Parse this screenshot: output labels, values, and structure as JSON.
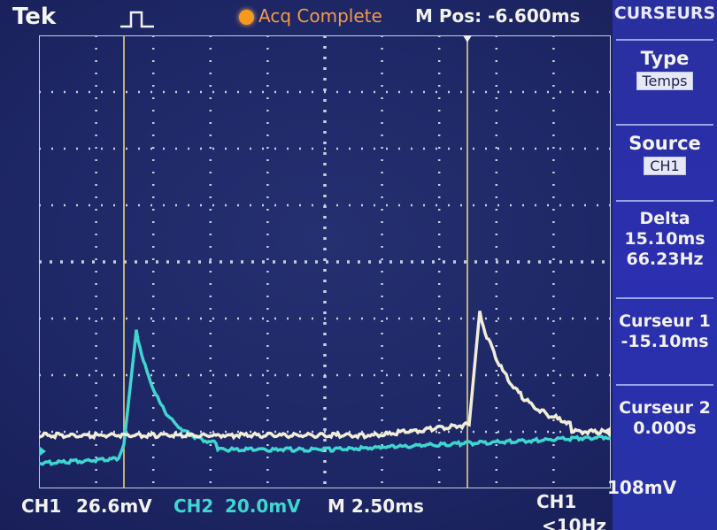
{
  "header": {
    "brand": "Tek",
    "status": "Acq Complete",
    "position": "M Pos: -6.600ms"
  },
  "menu": {
    "title": "CURSEURS",
    "type_label": "Type",
    "type_value": "Temps",
    "source_label": "Source",
    "source_value": "CH1",
    "delta_label": "Delta",
    "delta_time": "15.10ms",
    "delta_freq": "66.23Hz",
    "cursor1_label": "Curseur 1",
    "cursor1_value": "-15.10ms",
    "cursor2_label": "Curseur 2",
    "cursor2_value": "0.000s"
  },
  "footer": {
    "ch1_label": "CH1",
    "ch1_scale": "26.6mV",
    "ch2_label": "CH2",
    "ch2_scale": "20.0mV",
    "timebase": "M 2.50ms",
    "trigger_source": "CH1",
    "trigger_level": "108mV",
    "frequency": "<10Hz"
  },
  "colors": {
    "ch1": "#f1eed8",
    "ch2": "#3fd6d0",
    "cursor": "#e8d27a",
    "grid": "#c9cde0",
    "background": "#1e2766"
  },
  "icons": {
    "trigger": "pulse-icon",
    "status": "acq-dot-icon",
    "trigger_marker": "trigger-arrow-icon",
    "ground": "ground-marker-icon"
  }
}
